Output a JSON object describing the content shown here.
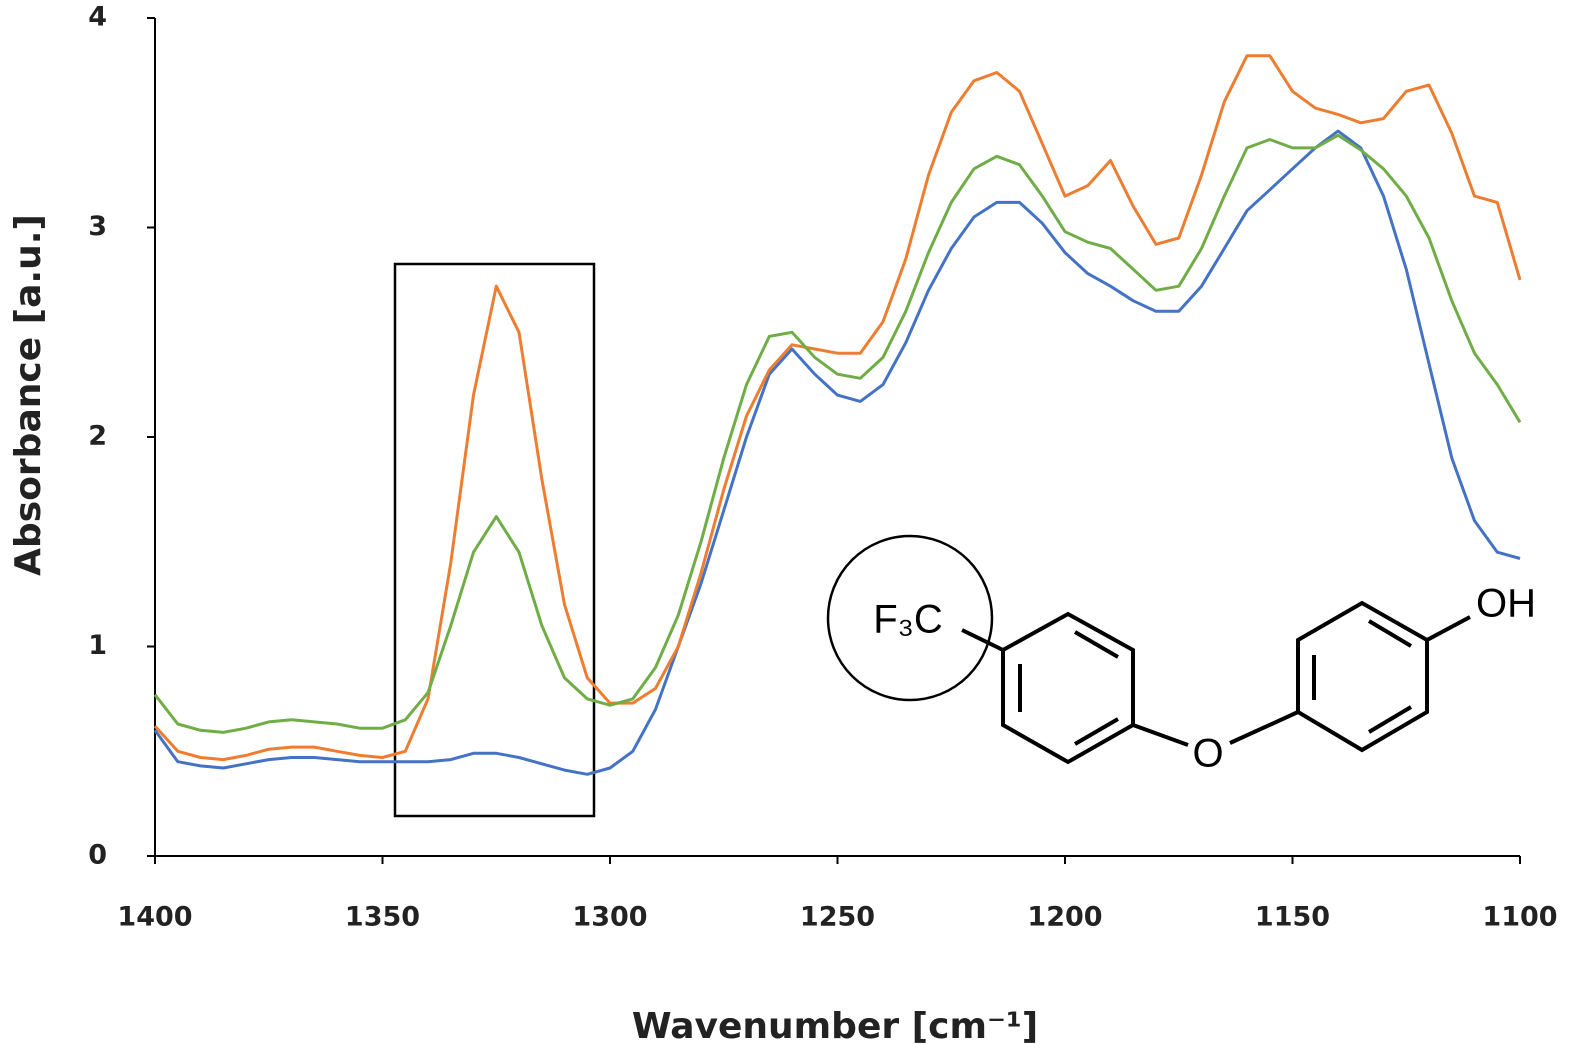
{
  "chart_data": {
    "type": "line",
    "x_label": "Wavenumber [cm⁻¹]",
    "y_label": "Absorbance [a.u.]",
    "xlim": [
      1400,
      1100
    ],
    "xticks": [
      1400,
      1350,
      1300,
      1250,
      1200,
      1150,
      1100
    ],
    "ylim": [
      0,
      4
    ],
    "yticks": [
      0,
      1,
      2,
      3,
      4
    ],
    "grid": false,
    "annotations": {
      "group": "F₃C",
      "hydroxyl": "OH",
      "ether": "O"
    },
    "x": [
      1400,
      1395,
      1390,
      1385,
      1380,
      1375,
      1370,
      1365,
      1360,
      1355,
      1350,
      1345,
      1340,
      1335,
      1330,
      1325,
      1320,
      1315,
      1310,
      1305,
      1300,
      1295,
      1290,
      1285,
      1280,
      1275,
      1270,
      1265,
      1260,
      1255,
      1250,
      1245,
      1240,
      1235,
      1230,
      1225,
      1220,
      1215,
      1210,
      1205,
      1200,
      1195,
      1190,
      1185,
      1180,
      1175,
      1170,
      1165,
      1160,
      1155,
      1150,
      1145,
      1140,
      1135,
      1130,
      1125,
      1120,
      1115,
      1110,
      1105,
      1100
    ],
    "series": [
      {
        "color": "#4472c4",
        "values": [
          0.6,
          0.45,
          0.43,
          0.42,
          0.44,
          0.46,
          0.47,
          0.47,
          0.46,
          0.45,
          0.45,
          0.45,
          0.45,
          0.46,
          0.49,
          0.49,
          0.47,
          0.44,
          0.41,
          0.39,
          0.42,
          0.5,
          0.7,
          1.0,
          1.3,
          1.65,
          2.0,
          2.3,
          2.42,
          2.3,
          2.2,
          2.17,
          2.25,
          2.45,
          2.7,
          2.9,
          3.05,
          3.12,
          3.12,
          3.02,
          2.88,
          2.78,
          2.72,
          2.65,
          2.6,
          2.6,
          2.72,
          2.9,
          3.08,
          3.18,
          3.28,
          3.38,
          3.46,
          3.38,
          3.15,
          2.8,
          2.35,
          1.9,
          1.6,
          1.45,
          1.42
        ]
      },
      {
        "color": "#ed7d31",
        "values": [
          0.62,
          0.5,
          0.47,
          0.46,
          0.48,
          0.51,
          0.52,
          0.52,
          0.5,
          0.48,
          0.47,
          0.5,
          0.75,
          1.4,
          2.2,
          2.72,
          2.5,
          1.8,
          1.2,
          0.85,
          0.73,
          0.73,
          0.8,
          1.0,
          1.35,
          1.75,
          2.1,
          2.32,
          2.44,
          2.42,
          2.4,
          2.4,
          2.55,
          2.85,
          3.25,
          3.55,
          3.7,
          3.74,
          3.65,
          3.4,
          3.15,
          3.2,
          3.32,
          3.1,
          2.92,
          2.95,
          3.25,
          3.6,
          3.82,
          3.82,
          3.65,
          3.57,
          3.54,
          3.5,
          3.52,
          3.65,
          3.68,
          3.45,
          3.15,
          3.12,
          2.75
        ]
      },
      {
        "color": "#70ad47",
        "values": [
          0.77,
          0.63,
          0.6,
          0.59,
          0.61,
          0.64,
          0.65,
          0.64,
          0.63,
          0.61,
          0.61,
          0.65,
          0.78,
          1.1,
          1.45,
          1.62,
          1.45,
          1.1,
          0.85,
          0.75,
          0.72,
          0.75,
          0.9,
          1.15,
          1.5,
          1.9,
          2.25,
          2.48,
          2.5,
          2.38,
          2.3,
          2.28,
          2.38,
          2.6,
          2.88,
          3.12,
          3.28,
          3.34,
          3.3,
          3.15,
          2.98,
          2.93,
          2.9,
          2.8,
          2.7,
          2.72,
          2.9,
          3.15,
          3.38,
          3.42,
          3.38,
          3.38,
          3.44,
          3.37,
          3.28,
          3.15,
          2.95,
          2.65,
          2.4,
          2.25,
          2.07
        ]
      }
    ]
  }
}
